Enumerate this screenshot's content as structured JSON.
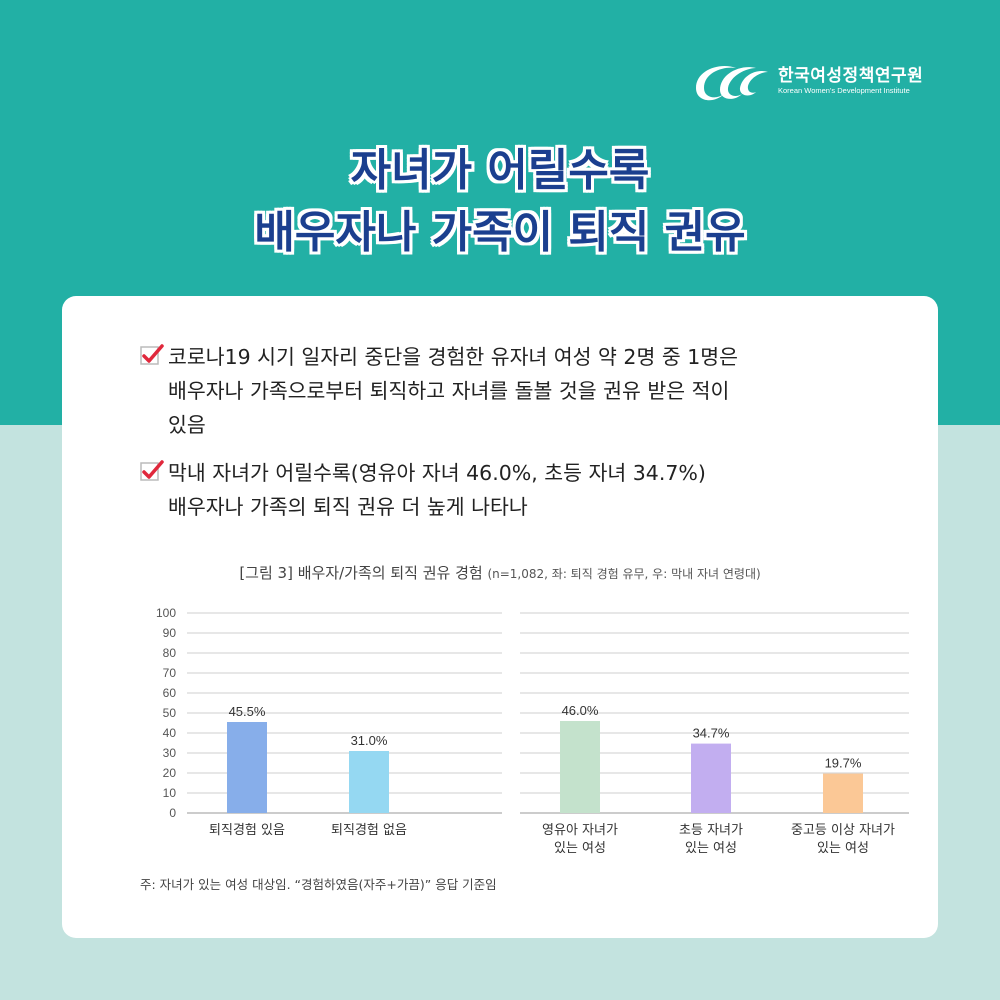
{
  "brand": {
    "name_kr": "한국여성정책연구원",
    "name_en": "Korean Women's Development Institute",
    "logo_icon": "kwdi-logo-icon"
  },
  "title": {
    "line1": "자녀가 어릴수록",
    "line2": "배우자나 가족이 퇴직 권유"
  },
  "bullets": [
    {
      "icon": "checkmark-icon",
      "line1": "코로나19 시기 일자리 중단을 경험한 유자녀 여성 약 2명 중 1명은",
      "line2": "배우자나 가족으로부터 퇴직하고 자녀를 돌볼 것을 권유 받은 적이",
      "line3": "있음"
    },
    {
      "icon": "checkmark-icon",
      "line1": "막내 자녀가 어릴수록(영유아 자녀 46.0%, 초등 자녀 34.7%)",
      "line2": "배우자나 가족의 퇴직 권유 더 높게 나타나"
    }
  ],
  "chart_caption": {
    "main": "[그림 3] 배우자/가족의 퇴직 권유 경험",
    "note": "(n=1,082, 좌: 퇴직 경험 유무, 우: 막내 자녀 연령대)"
  },
  "chart_data": {
    "type": "bar",
    "ylim": [
      0,
      100
    ],
    "yticks": [
      0,
      10,
      20,
      30,
      40,
      50,
      60,
      70,
      80,
      90,
      100
    ],
    "grid": true,
    "panels": [
      {
        "categories": [
          [
            "퇴직경험 있음"
          ],
          [
            "퇴직경험 없음"
          ]
        ],
        "values": [
          45.5,
          31.0
        ],
        "labels": [
          "45.5%",
          "31.0%"
        ],
        "colors": [
          "#87aeea",
          "#95d8f2"
        ]
      },
      {
        "categories": [
          [
            "영유아 자녀가",
            "있는 여성"
          ],
          [
            "초등 자녀가",
            "있는 여성"
          ],
          [
            "중고등 이상 자녀가",
            "있는 여성"
          ]
        ],
        "values": [
          46.0,
          34.7,
          19.7
        ],
        "labels": [
          "46.0%",
          "34.7%",
          "19.7%"
        ],
        "colors": [
          "#c4e2cc",
          "#c2aef0",
          "#fbc896"
        ]
      }
    ]
  },
  "footnote": "주: 자녀가 있는 여성 대상임. “경험하였음(자주+가끔)” 응답 기준임",
  "colors": {
    "teal": "#22b0a5",
    "mint": "#c3e3df",
    "title_navy": "#1b3f8f",
    "check_red": "#e0283c"
  }
}
